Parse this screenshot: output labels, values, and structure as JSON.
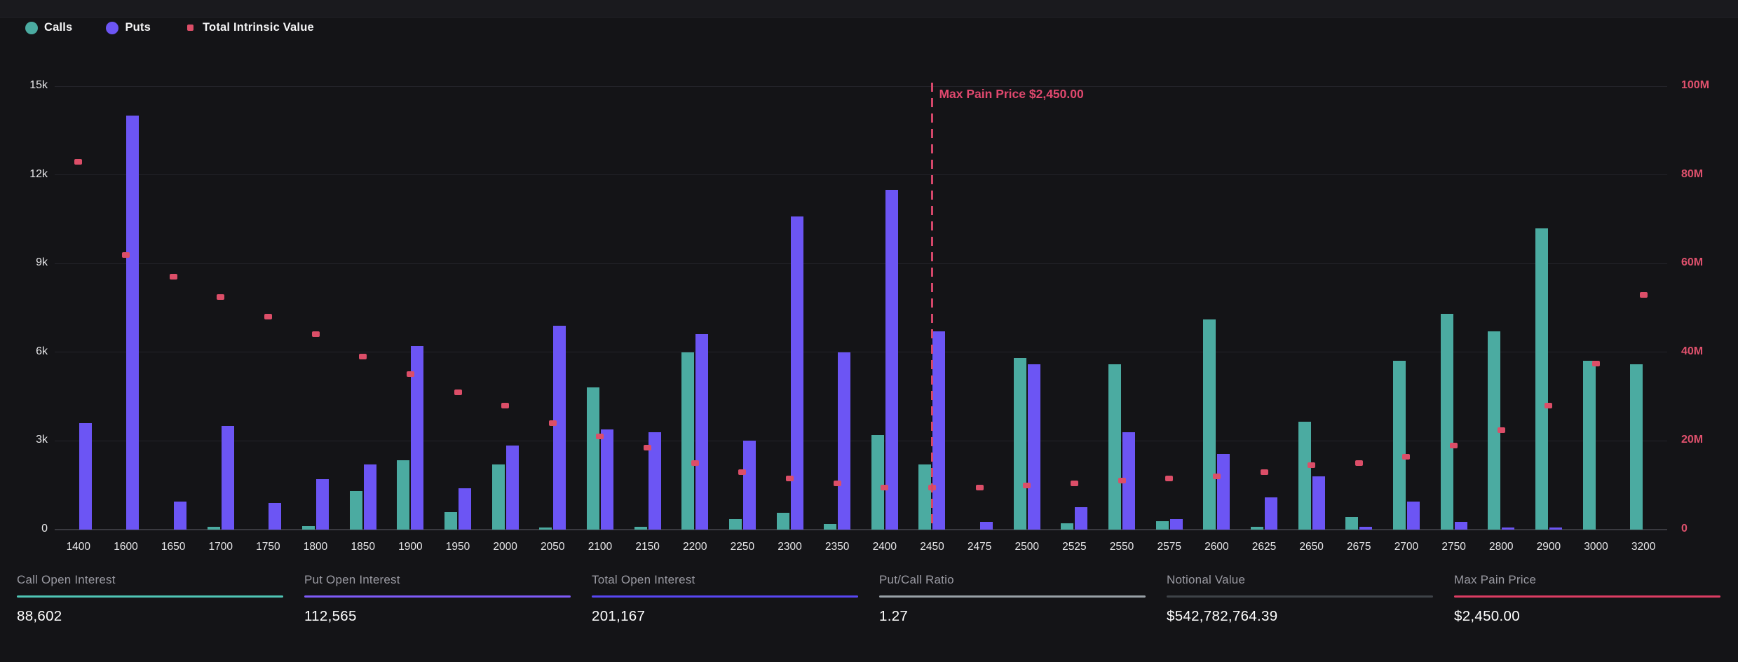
{
  "legend": [
    {
      "label": "Calls",
      "shape": "circle",
      "color": "#4BABA1"
    },
    {
      "label": "Puts",
      "shape": "circle",
      "color": "#6C55F4"
    },
    {
      "label": "Total Intrinsic Value",
      "shape": "square",
      "color": "#DC4E68"
    }
  ],
  "chart_data": {
    "type": "bar",
    "title": "",
    "categories": [
      "1400",
      "1600",
      "1650",
      "1700",
      "1750",
      "1800",
      "1850",
      "1900",
      "1950",
      "2000",
      "2050",
      "2100",
      "2150",
      "2200",
      "2250",
      "2300",
      "2350",
      "2400",
      "2450",
      "2475",
      "2500",
      "2525",
      "2550",
      "2575",
      "2600",
      "2625",
      "2650",
      "2675",
      "2700",
      "2750",
      "2800",
      "2900",
      "3000",
      "3200"
    ],
    "series": [
      {
        "name": "Calls",
        "type": "bar",
        "axis": "left",
        "color": "#4BABA1",
        "values": [
          0,
          0,
          0,
          100,
          0,
          120,
          1300,
          2350,
          600,
          2200,
          60,
          4800,
          90,
          6000,
          360,
          560,
          200,
          3200,
          2200,
          0,
          5800,
          220,
          5600,
          280,
          7100,
          100,
          3650,
          430,
          5700,
          7300,
          6700,
          10200,
          5700,
          5600
        ]
      },
      {
        "name": "Puts",
        "type": "bar",
        "axis": "left",
        "color": "#6C55F4",
        "values": [
          3600,
          14000,
          950,
          3500,
          900,
          1700,
          2200,
          6200,
          1400,
          2850,
          6900,
          3400,
          3300,
          6600,
          3000,
          10600,
          6000,
          11500,
          6700,
          260,
          5600,
          750,
          3300,
          360,
          2550,
          1100,
          1800,
          90,
          950,
          270,
          60,
          70,
          0,
          0
        ]
      },
      {
        "name": "Total Intrinsic Value",
        "type": "scatter",
        "axis": "right",
        "color": "#DC4E68",
        "values_million": [
          83,
          62,
          57,
          52.5,
          48,
          44,
          39,
          35,
          31,
          28,
          24,
          21,
          18.5,
          15,
          13,
          11.5,
          10.5,
          9.5,
          9.5,
          9.5,
          10,
          10.5,
          11,
          11.5,
          12,
          13,
          14.5,
          15,
          16.5,
          19,
          22.5,
          28,
          37.5,
          53
        ]
      }
    ],
    "left_axis": {
      "ticks": [
        "0",
        "3k",
        "6k",
        "9k",
        "12k",
        "15k"
      ],
      "max": 15000,
      "color": "#e8e8ea"
    },
    "right_axis": {
      "ticks": [
        "0",
        "20M",
        "40M",
        "60M",
        "80M",
        "100M"
      ],
      "max_million": 100,
      "color": "#E0516D"
    },
    "grid": "horizontal",
    "legend_position": "top-left",
    "annotation": {
      "text": "Max Pain Price $2,450.00",
      "strike": "2450",
      "line_color": "#D4476A",
      "text_color": "#E0486E"
    }
  },
  "stats": [
    {
      "label": "Call Open Interest",
      "value": "88,602",
      "accent": "#4FC5B5"
    },
    {
      "label": "Put Open Interest",
      "value": "112,565",
      "accent": "#7E5BF7"
    },
    {
      "label": "Total Open Interest",
      "value": "201,167",
      "accent": "#5847F2"
    },
    {
      "label": "Put/Call Ratio",
      "value": "1.27",
      "accent": "#99A1A7"
    },
    {
      "label": "Notional Value",
      "value": "$542,782,764.39",
      "accent": "#3E4348"
    },
    {
      "label": "Max Pain Price",
      "value": "$2,450.00",
      "accent": "#DC3D63"
    }
  ]
}
